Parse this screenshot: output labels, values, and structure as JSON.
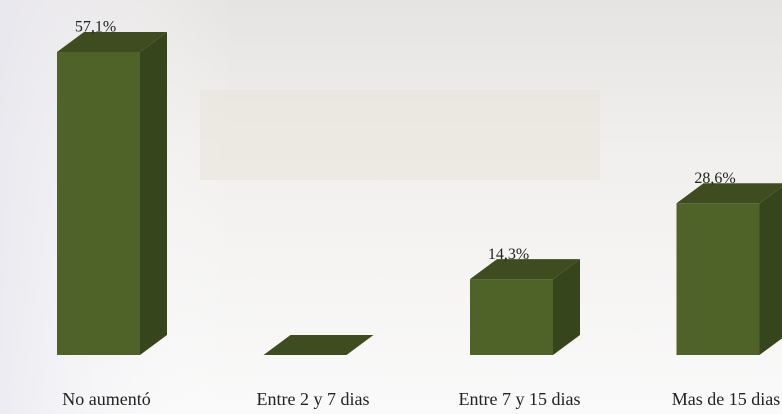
{
  "chart_data": {
    "type": "bar3d",
    "categories": [
      "No aumentó",
      "Entre 2 y 7 dias",
      "Entre 7 y 15 dias",
      "Mas de 15 dias"
    ],
    "values": [
      57.1,
      0,
      14.3,
      28.6
    ],
    "value_labels": [
      "57,1%",
      null,
      "14,3%",
      "28,6%"
    ],
    "color": "#4f6228"
  }
}
